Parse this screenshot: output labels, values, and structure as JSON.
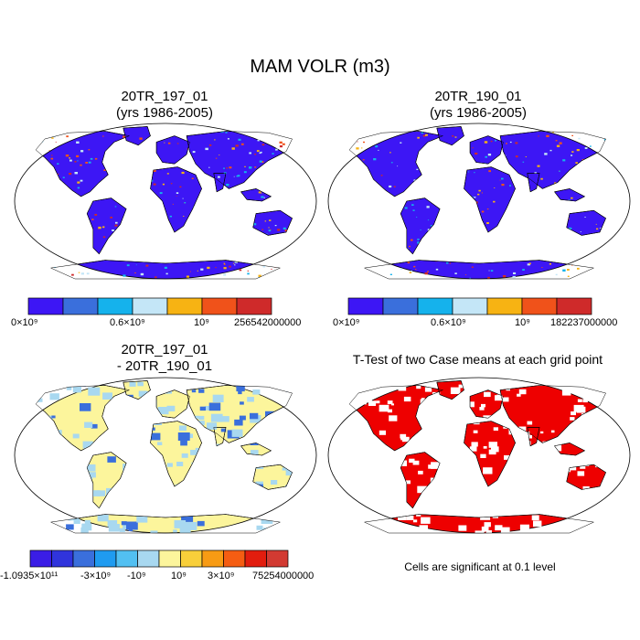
{
  "main_title": "MAM VOLR (m3)",
  "panels": [
    {
      "title_line1": "20TR_197_01",
      "title_line2": "(yrs 1986-2005)"
    },
    {
      "title_line1": "20TR_190_01",
      "title_line2": "(yrs 1986-2005)"
    },
    {
      "title_line1": "20TR_197_01",
      "title_line2": "- 20TR_190_01"
    },
    {
      "title_line1": "T-Test of two Case means at each grid point",
      "title_line2": ""
    }
  ],
  "colorbars": [
    {
      "colors": [
        "#3d16f5",
        "#3a6fdc",
        "#15b2ec",
        "#c4e6f7",
        "#f7b313",
        "#f0521a",
        "#cf2a2a"
      ],
      "labels": [
        "0×10⁹",
        "0.6×10⁹",
        "10⁹",
        "256542000000"
      ]
    },
    {
      "colors": [
        "#3d16f5",
        "#3a6fdc",
        "#15b2ec",
        "#c4e6f7",
        "#f7b313",
        "#f0521a",
        "#cf2a2a"
      ],
      "labels": [
        "0×10⁹",
        "0.6×10⁹",
        "10⁹",
        "182237000000"
      ]
    },
    {
      "colors": [
        "#3a1de6",
        "#3034dc",
        "#3a6fdc",
        "#1f9bf0",
        "#52c0f2",
        "#a8d8f0",
        "#fcf59c",
        "#f8cf3a",
        "#f79b14",
        "#f55d12",
        "#e21d0e",
        "#d23a32"
      ],
      "labels": [
        "-1.0935×10¹¹",
        "-3×10⁹",
        "-10⁹",
        "10⁹",
        "3×10⁹",
        "75254000000"
      ]
    }
  ],
  "significance_note": "Cells are significant at 0.1 level",
  "map_colors": {
    "ocean": "#ffffff",
    "volr_land": "#3d16f5",
    "diff_land": "#fcf59c",
    "diff_alt": "#a8d8f0",
    "significant": "#ee0000",
    "coast": "#000000"
  }
}
